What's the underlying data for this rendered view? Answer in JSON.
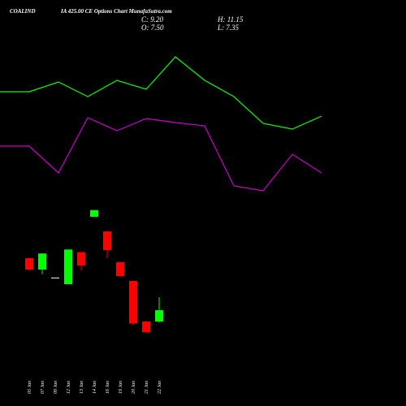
{
  "chart_data": [
    {
      "type": "candlestick",
      "title": "COALIND",
      "subtitle": "IA 425.00  CE Options  Chart MunafaSutra.com",
      "annotations": [
        "C: 9.20",
        "O: 7.50",
        "H: 11.15",
        "L: 7.35"
      ],
      "categories": [
        "05 Jan",
        "07 Jan",
        "09 Jan",
        "12 Jan",
        "13 Jan",
        "14 Jan",
        "16 Jan",
        "19 Jan",
        "20 Jan",
        "21 Jan",
        "22 Jan"
      ],
      "open": [
        17.0,
        15.3,
        14.1,
        13.1,
        17.9,
        23.2,
        21.0,
        16.4,
        13.6,
        7.5,
        7.5
      ],
      "high": [
        17.0,
        17.7,
        14.1,
        18.3,
        17.9,
        24.2,
        21.0,
        16.4,
        13.6,
        7.6,
        11.15
      ],
      "low": [
        15.1,
        14.6,
        14.1,
        13.1,
        15.2,
        23.2,
        17.0,
        14.3,
        7.0,
        5.9,
        7.35
      ],
      "close": [
        15.3,
        17.7,
        14.1,
        18.3,
        15.9,
        24.2,
        18.2,
        14.3,
        7.2,
        5.9,
        9.2
      ],
      "up_color": "#00ff00",
      "down_color": "#ff0000",
      "flat_color": "#ffffff",
      "ylim": [
        3,
        26
      ]
    },
    {
      "type": "line",
      "categories": [
        null,
        null,
        null,
        null,
        null,
        null,
        null,
        null,
        null,
        null,
        null,
        null
      ],
      "series": [
        {
          "color": "#00ff00",
          "values": [
            77.4,
            77.4,
            79.8,
            76.2,
            80.2,
            78,
            86,
            80.2,
            76.2,
            69.6,
            68.2,
            71.4
          ]
        },
        {
          "color": "#cc00cc",
          "values": [
            64,
            64,
            57.4,
            71,
            67.8,
            70.8,
            69.8,
            69,
            54.2,
            53,
            62,
            57.4
          ]
        }
      ],
      "ylim": [
        0,
        100
      ]
    }
  ]
}
